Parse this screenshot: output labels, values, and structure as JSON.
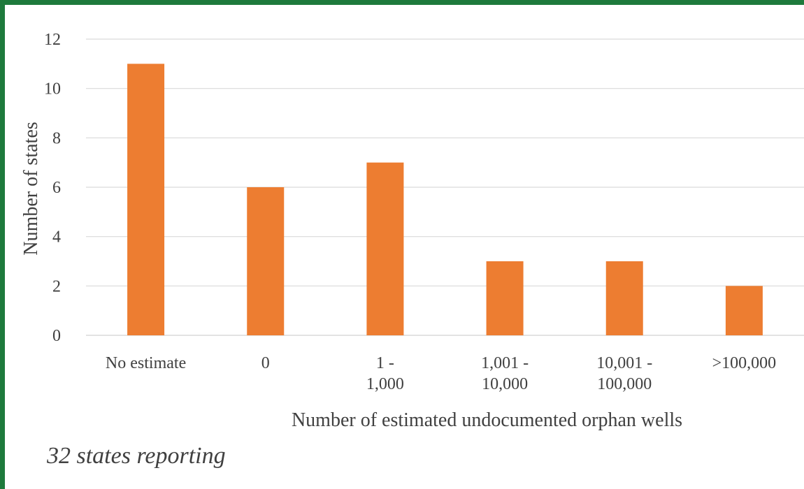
{
  "chart_data": {
    "type": "bar",
    "categories": [
      [
        "No estimate"
      ],
      [
        "0"
      ],
      [
        "1 -",
        "1,000"
      ],
      [
        "1,001 -",
        "10,000"
      ],
      [
        "10,001 -",
        "100,000"
      ],
      [
        ">100,000"
      ]
    ],
    "values": [
      11,
      6,
      7,
      3,
      3,
      2
    ],
    "xlabel": "Number of estimated undocumented orphan wells",
    "ylabel": "Number of states",
    "ylim": [
      0,
      12
    ],
    "yticks": [
      0,
      2,
      4,
      6,
      8,
      10,
      12
    ],
    "grid": true,
    "bar_color": "#ed7d31",
    "grid_color": "#d9d9d9"
  },
  "footnote": "32 states reporting",
  "frame_color": "#1e7a3c"
}
